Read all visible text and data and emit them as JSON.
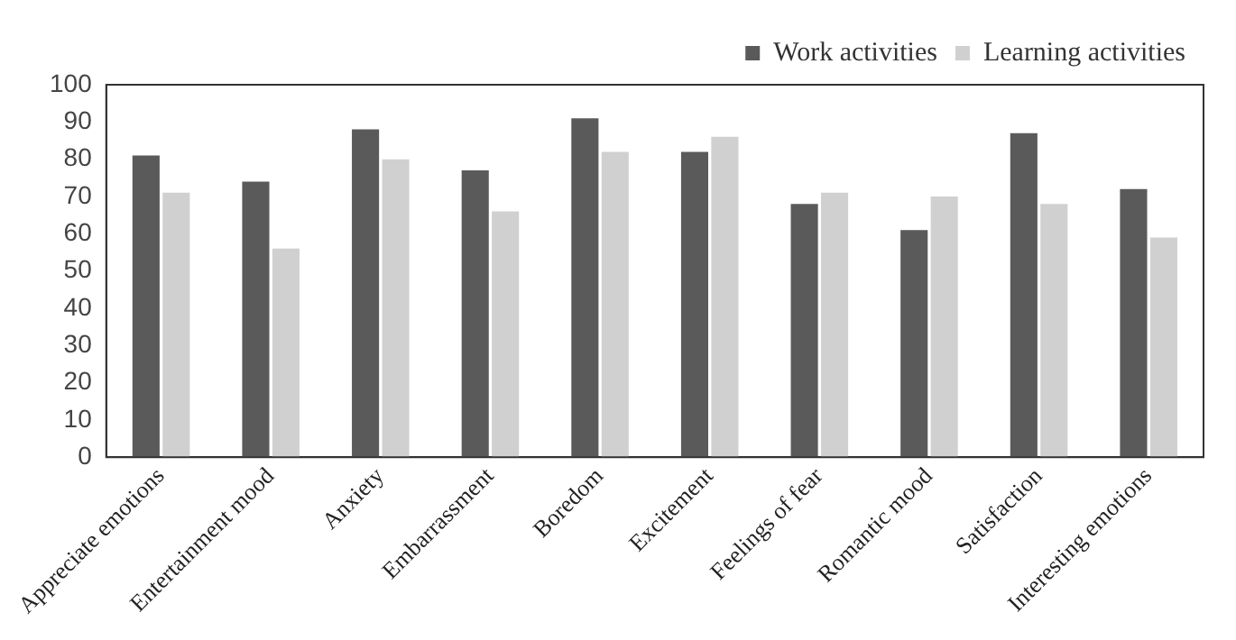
{
  "chart_data": {
    "type": "bar",
    "categories": [
      "Appreciate emotions",
      "Entertainment mood",
      "Anxiety",
      "Embarrassment",
      "Boredom",
      "Excitement",
      "Feelings of fear",
      "Romantic mood",
      "Satisfaction",
      "Interesting emotions"
    ],
    "series": [
      {
        "name": "Work activities",
        "color": "#5a5a5a",
        "values": [
          81,
          74,
          88,
          77,
          91,
          82,
          68,
          61,
          87,
          72
        ]
      },
      {
        "name": "Learning activities",
        "color": "#d0d0d0",
        "values": [
          71,
          56,
          80,
          66,
          82,
          86,
          71,
          70,
          68,
          59
        ]
      }
    ],
    "ylim": [
      0,
      100
    ],
    "yticks": [
      0,
      10,
      20,
      30,
      40,
      50,
      60,
      70,
      80,
      90,
      100
    ],
    "grid": false,
    "legend": "top right"
  }
}
